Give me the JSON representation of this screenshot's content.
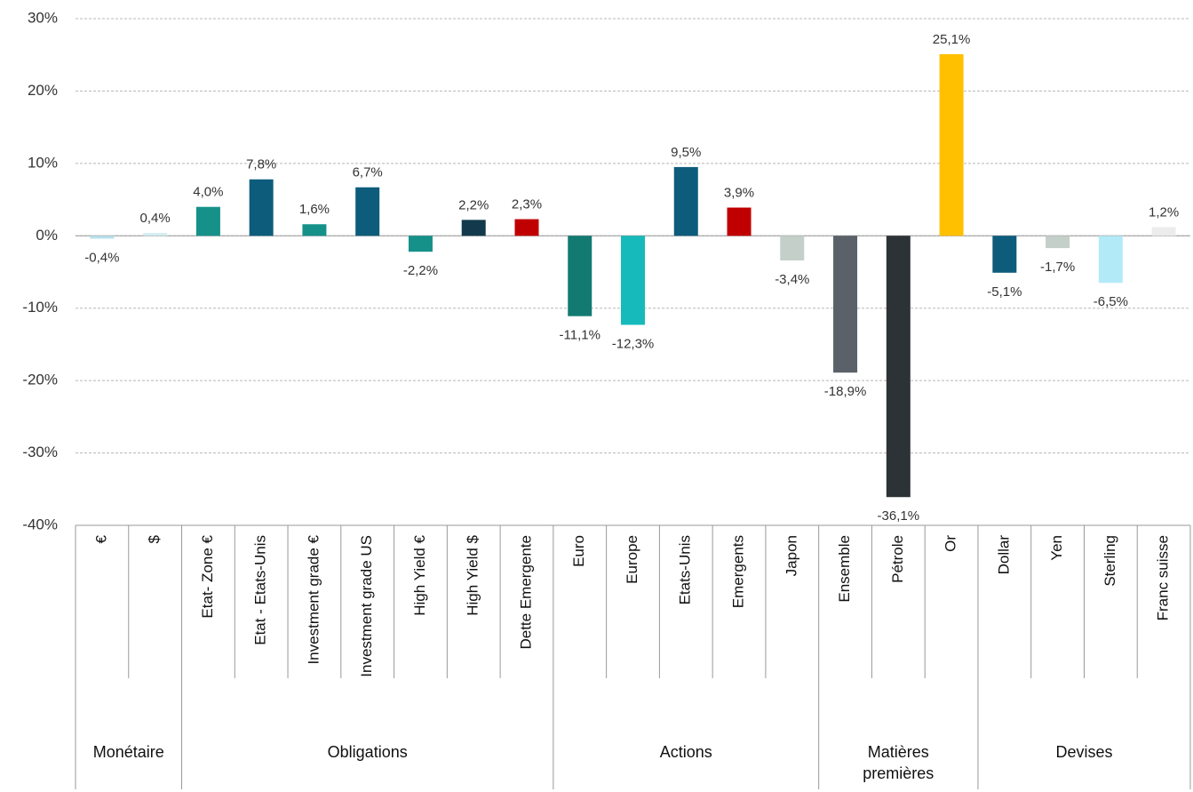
{
  "chart_data": {
    "type": "bar",
    "categories": [
      "€",
      "$",
      "Etat- Zone €",
      "Etat - Etats-Unis",
      "Investment grade €",
      "Investment grade US",
      "High Yield €",
      "High Yield $",
      "Dette Emergente",
      "Euro",
      "Europe",
      "Etats-Unis",
      "Emergents",
      "Japon",
      "Ensemble",
      "Pétrole",
      "Or",
      "Dollar",
      "Yen",
      "Sterling",
      "Franc suisse"
    ],
    "values": [
      -0.4,
      0.4,
      4.0,
      7.8,
      1.6,
      6.7,
      -2.2,
      2.2,
      2.3,
      -11.1,
      -12.3,
      9.5,
      3.9,
      -3.4,
      -18.9,
      -36.1,
      25.1,
      -5.1,
      -1.7,
      -6.5,
      1.2
    ],
    "value_labels": [
      "-0,4%",
      "0,4%",
      "4,0%",
      "7,8%",
      "1,6%",
      "6,7%",
      "-2,2%",
      "2,2%",
      "2,3%",
      "-11,1%",
      "-12,3%",
      "9,5%",
      "3,9%",
      "-3,4%",
      "-18,9%",
      "-36,1%",
      "25,1%",
      "-5,1%",
      "-1,7%",
      "-6,5%",
      "1,2%"
    ],
    "colors": [
      "#b9e2ec",
      "#d6edf2",
      "#16918a",
      "#0d5c7b",
      "#16918a",
      "#0d5c7b",
      "#16918a",
      "#123a4c",
      "#c00000",
      "#137a72",
      "#17baba",
      "#0d5c7b",
      "#c00000",
      "#c5cfc9",
      "#5a6169",
      "#2c3235",
      "#ffc000",
      "#0d5c7b",
      "#c5cfc9",
      "#b3eaf7",
      "#ececec"
    ],
    "groups": [
      {
        "name": "Monétaire",
        "count": 2
      },
      {
        "name": "Obligations",
        "count": 7
      },
      {
        "name": "Actions",
        "count": 5
      },
      {
        "name": "Matières premières",
        "count": 3
      },
      {
        "name": "Devises",
        "count": 4
      }
    ],
    "ylim": [
      -40,
      30
    ],
    "yticks": [
      {
        "value": -40,
        "label": "-40%"
      },
      {
        "value": -30,
        "label": "-30%"
      },
      {
        "value": -20,
        "label": "-20%"
      },
      {
        "value": -10,
        "label": "-10%"
      },
      {
        "value": 0,
        "label": "0%"
      },
      {
        "value": 10,
        "label": "10%"
      },
      {
        "value": 20,
        "label": "20%"
      },
      {
        "value": 30,
        "label": "30%"
      }
    ],
    "grid": true
  }
}
